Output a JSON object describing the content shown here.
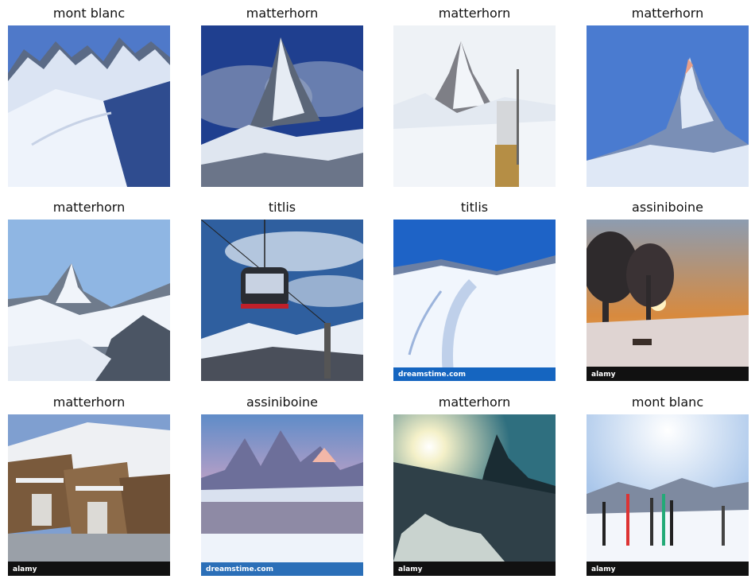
{
  "figure": {
    "images": [
      {
        "label": "mont blanc",
        "subject": "snowy alpine ridge with ski track",
        "palette": {
          "sky": "#4f79c9",
          "snow": "#eef3fb",
          "rock": "#5a6a86"
        }
      },
      {
        "label": "matterhorn",
        "subject": "matterhorn peak in cloud",
        "palette": {
          "sky": "#1f3f8f",
          "snow": "#e6ecf4",
          "rock": "#5b6678"
        }
      },
      {
        "label": "matterhorn",
        "subject": "matterhorn with lift station",
        "palette": {
          "sky": "#eef2f6",
          "snow": "#f2f5f9",
          "rock": "#7e7f86"
        }
      },
      {
        "label": "matterhorn",
        "subject": "matterhorn at dawn",
        "palette": {
          "sky": "#4a7bd0",
          "snow": "#dfe8f6",
          "rock": "#7a8fb6"
        }
      },
      {
        "label": "matterhorn",
        "subject": "matterhorn valley view",
        "palette": {
          "sky": "#8fb6e3",
          "snow": "#f0f4fa",
          "rock": "#6f7b8c"
        }
      },
      {
        "label": "titlis",
        "subject": "cable car over mountains",
        "palette": {
          "sky": "#2f5f9f",
          "snow": "#e8eef6",
          "rock": "#4a4f5a"
        }
      },
      {
        "label": "titlis",
        "subject": "ski slope under blue sky",
        "palette": {
          "sky": "#1e63c6",
          "snow": "#f1f6fd",
          "rock": "#6b7fa3"
        },
        "watermark": "dreamstime.com"
      },
      {
        "label": "assiniboine",
        "subject": "sunset through trees over snow",
        "palette": {
          "sky": "#d88a3e",
          "snow": "#dfd4d2",
          "rock": "#2e2a2c"
        },
        "watermark": "alamy"
      },
      {
        "label": "matterhorn",
        "subject": "zermatt chalets in winter",
        "palette": {
          "sky": "#7f9fd0",
          "snow": "#eef0f3",
          "rock": "#7a5a3c"
        },
        "watermark": "alamy"
      },
      {
        "label": "assiniboine",
        "subject": "pink peaks over frozen valley",
        "palette": {
          "sky": "#5f8cc8",
          "snow": "#eef3fa",
          "rock": "#6d6f9a"
        },
        "watermark": "dreamstime.com"
      },
      {
        "label": "matterhorn",
        "subject": "sun flare over matterhorn",
        "palette": {
          "sky": "#2f6f7f",
          "snow": "#c9d3cf",
          "rock": "#1a2c33"
        },
        "watermark": "alamy"
      },
      {
        "label": "mont blanc",
        "subject": "skis standing in snow",
        "palette": {
          "sky": "#a9c6ea",
          "snow": "#f3f6fb",
          "rock": "#7e8aa0"
        },
        "watermark": "alamy"
      }
    ]
  }
}
